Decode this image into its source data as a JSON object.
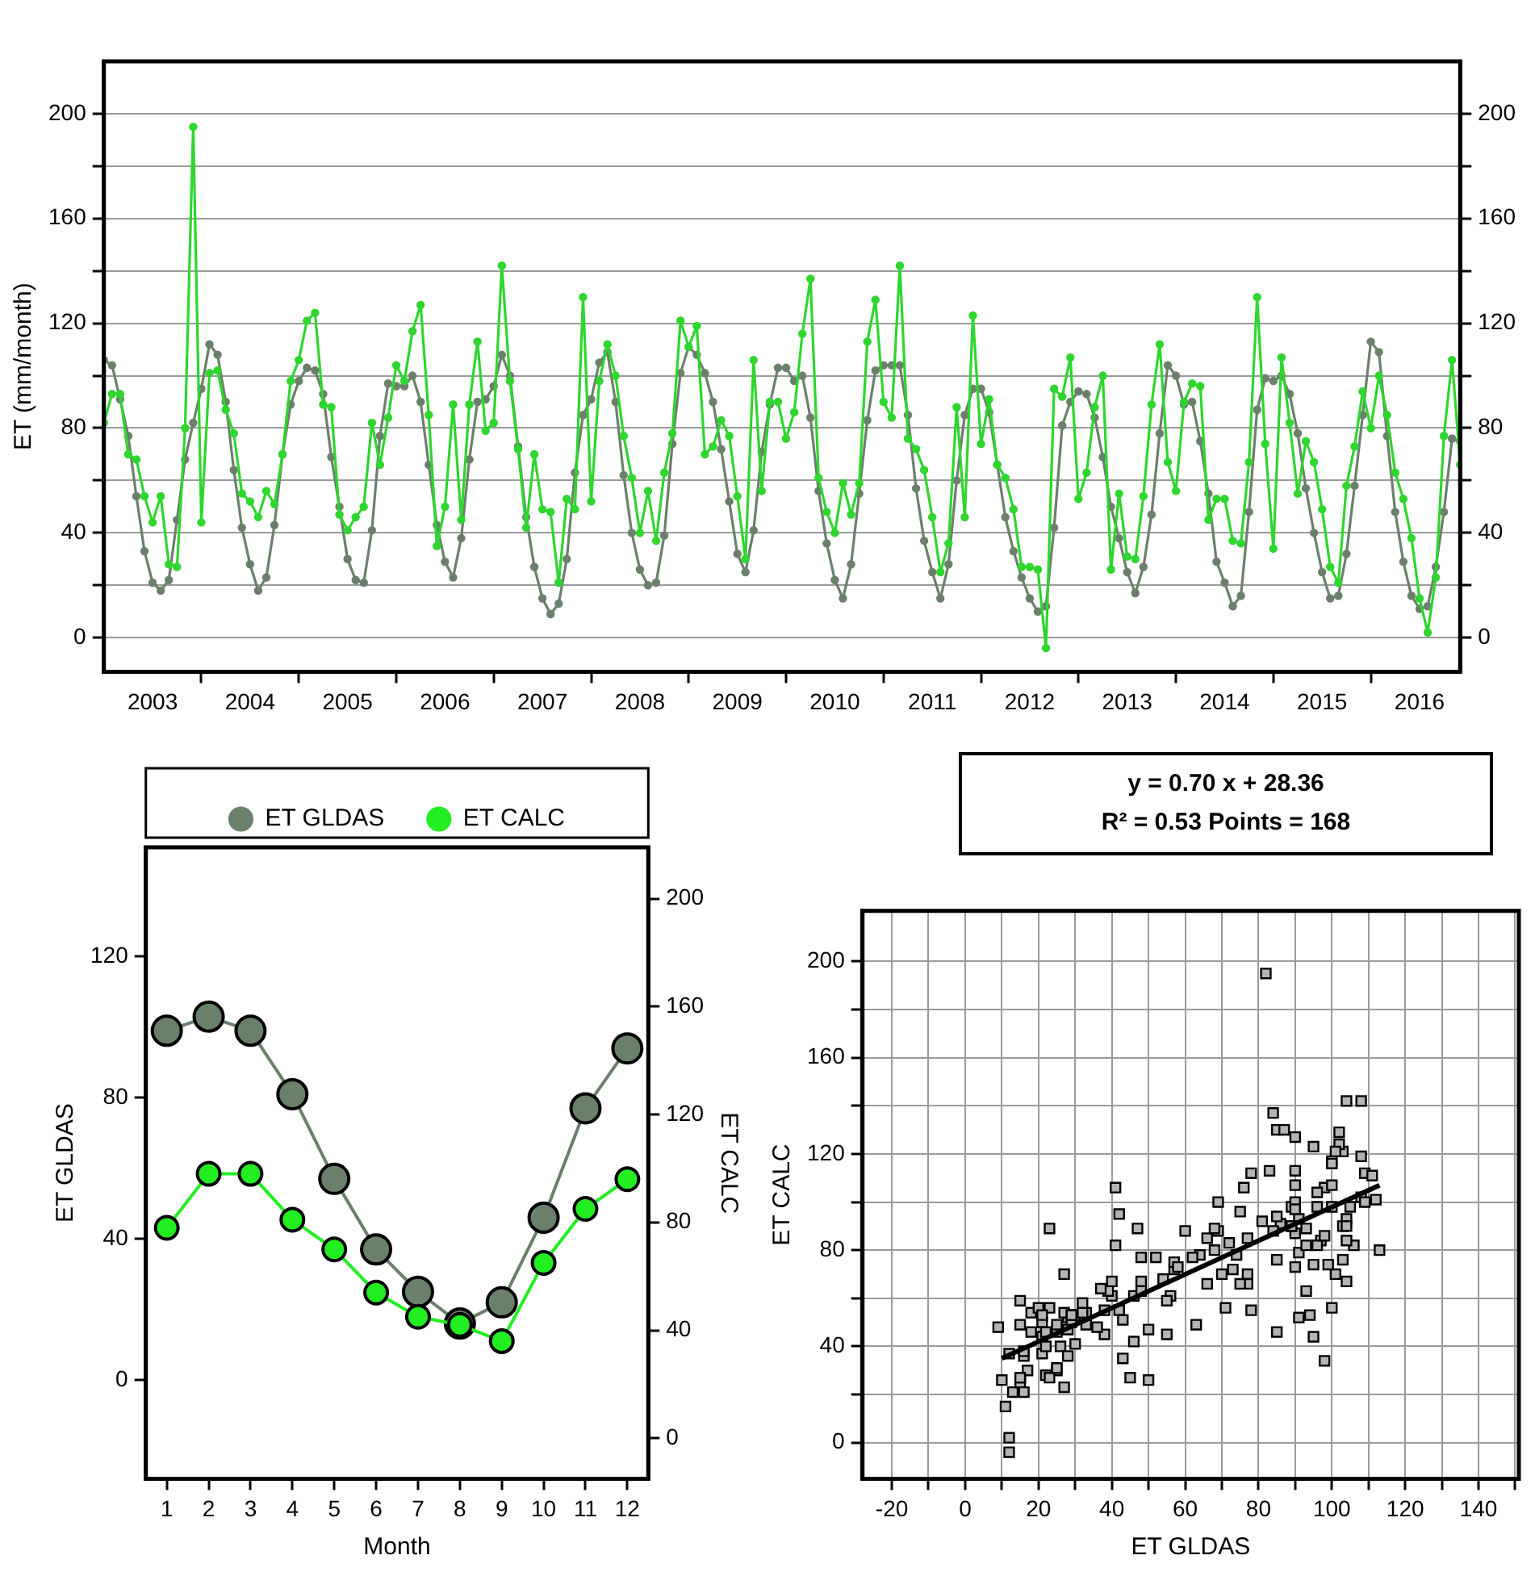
{
  "chart_data": [
    {
      "type": "line",
      "ylabel": "ET (mm/month)",
      "grid": "y",
      "marker": "circle",
      "x": [
        "2003-01",
        "2003-02",
        "2003-03",
        "2003-04",
        "2003-05",
        "2003-06",
        "2003-07",
        "2003-08",
        "2003-09",
        "2003-10",
        "2003-11",
        "2003-12",
        "2004-01",
        "2004-02",
        "2004-03",
        "2004-04",
        "2004-05",
        "2004-06",
        "2004-07",
        "2004-08",
        "2004-09",
        "2004-10",
        "2004-11",
        "2004-12",
        "2005-01",
        "2005-02",
        "2005-03",
        "2005-04",
        "2005-05",
        "2005-06",
        "2005-07",
        "2005-08",
        "2005-09",
        "2005-10",
        "2005-11",
        "2005-12",
        "2006-01",
        "2006-02",
        "2006-03",
        "2006-04",
        "2006-05",
        "2006-06",
        "2006-07",
        "2006-08",
        "2006-09",
        "2006-10",
        "2006-11",
        "2006-12",
        "2007-01",
        "2007-02",
        "2007-03",
        "2007-04",
        "2007-05",
        "2007-06",
        "2007-07",
        "2007-08",
        "2007-09",
        "2007-10",
        "2007-11",
        "2007-12",
        "2008-01",
        "2008-02",
        "2008-03",
        "2008-04",
        "2008-05",
        "2008-06",
        "2008-07",
        "2008-08",
        "2008-09",
        "2008-10",
        "2008-11",
        "2008-12",
        "2009-01",
        "2009-02",
        "2009-03",
        "2009-04",
        "2009-05",
        "2009-06",
        "2009-07",
        "2009-08",
        "2009-09",
        "2009-10",
        "2009-11",
        "2009-12",
        "2010-01",
        "2010-02",
        "2010-03",
        "2010-04",
        "2010-05",
        "2010-06",
        "2010-07",
        "2010-08",
        "2010-09",
        "2010-10",
        "2010-11",
        "2010-12",
        "2011-01",
        "2011-02",
        "2011-03",
        "2011-04",
        "2011-05",
        "2011-06",
        "2011-07",
        "2011-08",
        "2011-09",
        "2011-10",
        "2011-11",
        "2011-12",
        "2012-01",
        "2012-02",
        "2012-03",
        "2012-04",
        "2012-05",
        "2012-06",
        "2012-07",
        "2012-08",
        "2012-09",
        "2012-10",
        "2012-11",
        "2012-12",
        "2013-01",
        "2013-02",
        "2013-03",
        "2013-04",
        "2013-05",
        "2013-06",
        "2013-07",
        "2013-08",
        "2013-09",
        "2013-10",
        "2013-11",
        "2013-12",
        "2014-01",
        "2014-02",
        "2014-03",
        "2014-04",
        "2014-05",
        "2014-06",
        "2014-07",
        "2014-08",
        "2014-09",
        "2014-10",
        "2014-11",
        "2014-12",
        "2015-01",
        "2015-02",
        "2015-03",
        "2015-04",
        "2015-05",
        "2015-06",
        "2015-07",
        "2015-08",
        "2015-09",
        "2015-10",
        "2015-11",
        "2015-12",
        "2016-01",
        "2016-02",
        "2016-03",
        "2016-04",
        "2016-05",
        "2016-06",
        "2016-07",
        "2016-08",
        "2016-09",
        "2016-10",
        "2016-11",
        "2016-12"
      ],
      "series": [
        {
          "color": "#6b806b",
          "values": [
            106,
            104,
            91,
            77,
            54,
            33,
            21,
            18,
            22,
            45,
            68,
            82,
            95,
            112,
            108,
            90,
            64,
            42,
            28,
            18,
            23,
            43,
            70,
            89,
            98,
            103,
            102,
            93,
            69,
            50,
            30,
            22,
            21,
            41,
            77,
            97,
            96,
            96,
            100,
            90,
            66,
            43,
            29,
            23,
            38,
            68,
            90,
            91,
            96,
            108,
            100,
            73,
            46,
            27,
            15,
            9,
            13,
            30,
            63,
            85,
            91,
            105,
            109,
            90,
            62,
            40,
            26,
            20,
            21,
            39,
            74,
            101,
            111,
            108,
            101,
            90,
            72,
            52,
            32,
            25,
            41,
            71,
            89,
            103,
            103,
            98,
            100,
            84,
            56,
            36,
            22,
            15,
            28,
            55,
            83,
            102,
            104,
            104,
            104,
            85,
            57,
            37,
            25,
            15,
            28,
            60,
            85,
            95,
            95,
            86,
            66,
            46,
            33,
            23,
            15,
            10,
            12,
            42,
            81,
            90,
            94,
            93,
            84,
            69,
            50,
            38,
            25,
            17,
            27,
            47,
            78,
            104,
            100,
            89,
            90,
            75,
            55,
            29,
            21,
            12,
            16,
            48,
            87,
            99,
            98,
            100,
            93,
            78,
            57,
            40,
            25,
            15,
            16,
            32,
            58,
            85,
            113,
            109,
            77,
            48,
            29,
            16,
            11,
            12,
            27,
            48,
            76,
            75
          ]
        },
        {
          "color": "#2ed62e",
          "values": [
            82,
            93,
            93,
            70,
            68,
            54,
            44,
            54,
            28,
            27,
            80,
            195,
            44,
            101,
            102,
            87,
            78,
            55,
            52,
            46,
            56,
            51,
            70,
            98,
            106,
            121,
            124,
            89,
            88,
            47,
            41,
            46,
            50,
            82,
            66,
            84,
            104,
            98,
            117,
            127,
            85,
            35,
            50,
            89,
            45,
            89,
            113,
            79,
            82,
            142,
            98,
            72,
            42,
            70,
            49,
            48,
            21,
            53,
            49,
            130,
            52,
            98,
            112,
            100,
            77,
            61,
            40,
            56,
            37,
            63,
            78,
            121,
            111,
            119,
            70,
            73,
            83,
            77,
            54,
            30,
            106,
            56,
            90,
            90,
            76,
            86,
            116,
            137,
            61,
            48,
            40,
            59,
            47,
            59,
            113,
            129,
            90,
            84,
            142,
            76,
            72,
            64,
            46,
            25,
            36,
            88,
            46,
            123,
            74,
            91,
            66,
            61,
            49,
            27,
            27,
            26,
            -4,
            95,
            92,
            107,
            53,
            63,
            88,
            100,
            26,
            55,
            31,
            30,
            54,
            89,
            112,
            67,
            56,
            90,
            97,
            96,
            45,
            53,
            53,
            37,
            36,
            67,
            130,
            74,
            34,
            107,
            82,
            55,
            75,
            67,
            49,
            27,
            21,
            58,
            73,
            94,
            80,
            100,
            85,
            63,
            53,
            38,
            15,
            2,
            23,
            77,
            106,
            66
          ]
        }
      ],
      "xlim": [
        "2003-01",
        "2016-12"
      ],
      "xticks": [
        {
          "value": "2003-07",
          "label": "2003"
        },
        {
          "value": "2004-01",
          "label": null
        },
        {
          "value": "2004-07",
          "label": "2004"
        },
        {
          "value": "2005-01",
          "label": null
        },
        {
          "value": "2005-07",
          "label": "2005"
        },
        {
          "value": "2006-01",
          "label": null
        },
        {
          "value": "2006-07",
          "label": "2006"
        },
        {
          "value": "2007-01",
          "label": null
        },
        {
          "value": "2007-07",
          "label": "2007"
        },
        {
          "value": "2008-01",
          "label": null
        },
        {
          "value": "2008-07",
          "label": "2008"
        },
        {
          "value": "2009-01",
          "label": null
        },
        {
          "value": "2009-07",
          "label": "2009"
        },
        {
          "value": "2010-01",
          "label": null
        },
        {
          "value": "2010-07",
          "label": "2010"
        },
        {
          "value": "2011-01",
          "label": null
        },
        {
          "value": "2011-07",
          "label": "2011"
        },
        {
          "value": "2012-01",
          "label": null
        },
        {
          "value": "2012-07",
          "label": "2012"
        },
        {
          "value": "2013-01",
          "label": null
        },
        {
          "value": "2013-07",
          "label": "2013"
        },
        {
          "value": "2014-01",
          "label": null
        },
        {
          "value": "2014-07",
          "label": "2014"
        },
        {
          "value": "2015-01",
          "label": null
        },
        {
          "value": "2015-07",
          "label": "2015"
        },
        {
          "value": "2016-01",
          "label": null
        },
        {
          "value": "2016-07",
          "label": "2016"
        }
      ],
      "ylim": [
        -13,
        220
      ],
      "yticks": [
        0,
        {
          "value": 20,
          "label": null
        },
        40,
        {
          "value": 60,
          "label": null
        },
        80,
        {
          "value": 100,
          "label": null
        },
        120,
        {
          "value": 140,
          "label": null
        },
        160,
        {
          "value": 180,
          "label": null
        },
        200
      ],
      "y2lim": [
        -13,
        220
      ],
      "y2ticks": [
        0,
        {
          "value": 20,
          "label": null
        },
        40,
        {
          "value": 60,
          "label": null
        },
        80,
        {
          "value": 100,
          "label": null
        },
        120,
        {
          "value": 140,
          "label": null
        },
        160,
        {
          "value": 180,
          "label": null
        },
        200
      ]
    },
    {
      "type": "line",
      "xlabel": "Month",
      "ylabel": "ET GLDAS",
      "y2label": "ET CALC",
      "legend": "top",
      "marker": "circle",
      "x": [
        1,
        2,
        3,
        4,
        5,
        6,
        7,
        8,
        9,
        10,
        11,
        12
      ],
      "series": [
        {
          "name": "ET GLDAS",
          "color": "#6b806b",
          "values": [
            99,
            103,
            99,
            81,
            57,
            37,
            25,
            16,
            22,
            46,
            77,
            94
          ]
        },
        {
          "name": "ET CALC",
          "color": "#22ee22",
          "axis": "y2",
          "values": [
            78,
            98,
            98,
            81,
            70,
            54,
            45,
            42,
            36,
            65,
            85,
            96
          ]
        }
      ],
      "xlim": [
        0.5,
        12.5
      ],
      "xticks": [
        1,
        2,
        3,
        4,
        5,
        6,
        7,
        8,
        9,
        10,
        11,
        12
      ],
      "ylim": [
        -28,
        151
      ],
      "yticks": [
        0,
        40,
        80,
        120
      ],
      "y2lim": [
        -15,
        219
      ],
      "y2ticks": [
        0,
        40,
        80,
        120,
        160,
        200
      ]
    },
    {
      "type": "scatter",
      "xlabel": "ET GLDAS",
      "ylabel": "ET CALC",
      "grid": true,
      "marker": "square",
      "annotations": [
        "y = 0.70 x + 28.36",
        "R² = 0.53  Points = 168"
      ],
      "series": [
        {
          "color": "#b4b4b4",
          "x": [
            106,
            104,
            91,
            77,
            54,
            33,
            21,
            18,
            22,
            45,
            68,
            82,
            95,
            112,
            108,
            90,
            64,
            42,
            28,
            18,
            23,
            43,
            70,
            89,
            98,
            103,
            102,
            93,
            69,
            50,
            30,
            22,
            21,
            41,
            77,
            97,
            96,
            96,
            100,
            90,
            66,
            43,
            29,
            23,
            38,
            68,
            90,
            91,
            96,
            108,
            100,
            73,
            46,
            27,
            15,
            9,
            13,
            30,
            63,
            85,
            91,
            105,
            109,
            90,
            62,
            40,
            26,
            20,
            21,
            39,
            74,
            101,
            111,
            108,
            101,
            90,
            72,
            52,
            32,
            25,
            41,
            71,
            89,
            103,
            103,
            98,
            100,
            84,
            56,
            36,
            22,
            15,
            28,
            55,
            83,
            102,
            104,
            104,
            104,
            85,
            57,
            37,
            25,
            15,
            28,
            60,
            85,
            95,
            95,
            86,
            66,
            46,
            33,
            23,
            15,
            10,
            12,
            42,
            81,
            90,
            94,
            93,
            84,
            69,
            50,
            38,
            25,
            17,
            27,
            47,
            78,
            104,
            100,
            89,
            90,
            75,
            55,
            29,
            21,
            12,
            16,
            48,
            87,
            99,
            98,
            100,
            93,
            78,
            57,
            40,
            25,
            15,
            16,
            32,
            58,
            85,
            113,
            109,
            77,
            48,
            29,
            16,
            11,
            12,
            27,
            48,
            76,
            75
          ],
          "values": [
            82,
            93,
            93,
            70,
            68,
            54,
            44,
            54,
            28,
            27,
            80,
            195,
            44,
            101,
            102,
            87,
            78,
            55,
            52,
            46,
            56,
            51,
            70,
            98,
            106,
            121,
            124,
            89,
            88,
            47,
            41,
            46,
            50,
            82,
            66,
            84,
            104,
            98,
            117,
            127,
            85,
            35,
            50,
            89,
            45,
            89,
            113,
            79,
            82,
            142,
            98,
            72,
            42,
            70,
            49,
            48,
            21,
            53,
            49,
            130,
            52,
            98,
            112,
            100,
            77,
            61,
            40,
            56,
            37,
            63,
            78,
            121,
            111,
            119,
            70,
            73,
            83,
            77,
            54,
            30,
            106,
            56,
            90,
            90,
            76,
            86,
            116,
            137,
            61,
            48,
            40,
            59,
            47,
            59,
            113,
            129,
            90,
            84,
            142,
            76,
            72,
            64,
            46,
            25,
            36,
            88,
            46,
            123,
            74,
            91,
            66,
            61,
            49,
            27,
            27,
            26,
            -4,
            95,
            92,
            107,
            53,
            63,
            88,
            100,
            26,
            55,
            31,
            30,
            54,
            89,
            112,
            67,
            56,
            90,
            97,
            96,
            45,
            53,
            53,
            37,
            36,
            67,
            130,
            74,
            34,
            107,
            82,
            55,
            75,
            67,
            49,
            27,
            21,
            58,
            73,
            94,
            80,
            100,
            85,
            63,
            53,
            38,
            15,
            2,
            23,
            77,
            106,
            66
          ]
        },
        {
          "type": "line",
          "color": "#000000",
          "marker": "none",
          "x": [
            10,
            113
          ],
          "values": [
            35,
            107
          ]
        }
      ],
      "xlim": [
        -28,
        151
      ],
      "xticks": [
        -20,
        {
          "value": -10,
          "label": null
        },
        0,
        {
          "value": 10,
          "label": null
        },
        20,
        {
          "value": 30,
          "label": null
        },
        40,
        {
          "value": 50,
          "label": null
        },
        60,
        {
          "value": 70,
          "label": null
        },
        80,
        {
          "value": 90,
          "label": null
        },
        100,
        {
          "value": 110,
          "label": null
        },
        120,
        {
          "value": 130,
          "label": null
        },
        140,
        {
          "value": 150,
          "label": null
        }
      ],
      "ylim": [
        -15,
        221
      ],
      "yticks": [
        0,
        {
          "value": 20,
          "label": null
        },
        40,
        {
          "value": 60,
          "label": null
        },
        80,
        {
          "value": 100,
          "label": null
        },
        120,
        {
          "value": 140,
          "label": null
        },
        160,
        {
          "value": 180,
          "label": null
        },
        200
      ]
    }
  ]
}
